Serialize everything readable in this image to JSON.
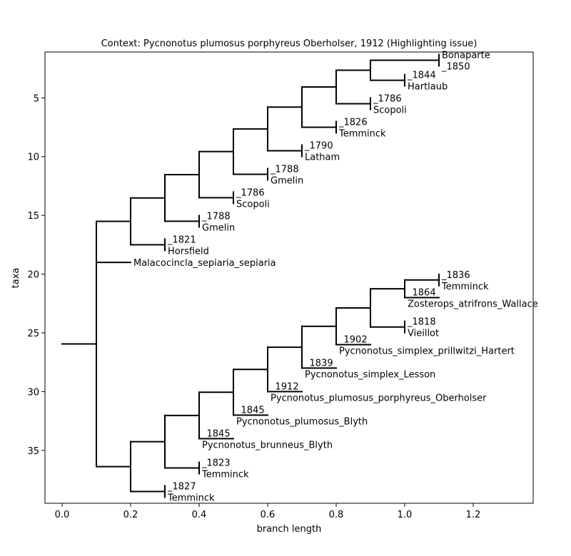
{
  "chart_data": {
    "type": "tree",
    "title": "Context: Pycnonotus plumosus porphyreus Oberholser, 1912 (Highlighting issue)",
    "xlabel": "branch length",
    "ylabel": "taxa",
    "xlim": [
      -0.05,
      1.375
    ],
    "ylim": [
      39.5,
      1.1
    ],
    "x_ticks": [
      0.0,
      0.2,
      0.4,
      0.6,
      0.8,
      1.0,
      1.2
    ],
    "x_tick_labels": [
      "0.0",
      "0.2",
      "0.4",
      "0.6",
      "0.8",
      "1.0",
      "1.2"
    ],
    "y_ticks": [
      5,
      10,
      15,
      20,
      25,
      30,
      35
    ],
    "y_tick_labels": [
      "5",
      "10",
      "15",
      "20",
      "25",
      "30",
      "35"
    ],
    "grid": false,
    "tree": {
      "x": 0.1,
      "root_stub_x": 0.0,
      "children": [
        {
          "x": 0.2,
          "children": [
            {
              "x": 0.3,
              "children": [
                {
                  "x": 0.4,
                  "children": [
                    {
                      "x": 0.5,
                      "children": [
                        {
                          "x": 0.6,
                          "children": [
                            {
                              "x": 0.7,
                              "children": [
                                {
                                  "x": 0.8,
                                  "children": [
                                    {
                                      "x": 0.9,
                                      "children": [
                                        {
                                          "x": 1.1,
                                          "y": 1.8,
                                          "label": " Bonaparte\n_1850",
                                          "tick": true
                                        },
                                        {
                                          "x": 1.0,
                                          "y": 3.5,
                                          "label": "_1844\nHartlaub",
                                          "tick": true
                                        }
                                      ]
                                    },
                                    {
                                      "x": 0.9,
                                      "y": 5.5,
                                      "label": "_1786\nScopoli",
                                      "tick": true
                                    }
                                  ]
                                },
                                {
                                  "x": 0.8,
                                  "y": 7.5,
                                  "label": "_1826\nTemminck",
                                  "tick": true
                                }
                              ]
                            },
                            {
                              "x": 0.7,
                              "y": 9.5,
                              "label": "_1790\nLatham",
                              "tick": true
                            }
                          ]
                        },
                        {
                          "x": 0.6,
                          "y": 11.5,
                          "label": "_1788\nGmelin",
                          "tick": true
                        }
                      ]
                    },
                    {
                      "x": 0.5,
                      "y": 13.5,
                      "label": "_1786\nScopoli",
                      "tick": true
                    }
                  ]
                },
                {
                  "x": 0.4,
                  "y": 15.5,
                  "label": "_1788\nGmelin",
                  "tick": true
                }
              ]
            },
            {
              "x": 0.3,
              "y": 17.5,
              "label": "_1821\nHorsfield",
              "tick": true
            }
          ]
        },
        {
          "x": 0.2,
          "y": 19.0,
          "label": "Malacocincla_sepiaria_sepiaria",
          "tick": false
        },
        {
          "x": 0.2,
          "children": [
            {
              "x": 0.3,
              "children": [
                {
                  "x": 0.4,
                  "children": [
                    {
                      "x": 0.5,
                      "children": [
                        {
                          "x": 0.6,
                          "children": [
                            {
                              "x": 0.7,
                              "children": [
                                {
                                  "x": 0.8,
                                  "children": [
                                    {
                                      "x": 0.9,
                                      "children": [
                                        {
                                          "x": 1.0,
                                          "children": [
                                            {
                                              "x": 1.1,
                                              "y": 20.5,
                                              "label": "_1836\nTemminck",
                                              "tick": true
                                            },
                                            {
                                              "x": 1.1,
                                              "y": 22.0,
                                              "label": "_1864\nZosterops_atrifrons_Wallace",
                                              "tick": false,
                                              "label_x": 1.0
                                            }
                                          ]
                                        },
                                        {
                                          "x": 1.0,
                                          "y": 24.5,
                                          "label": "_1818\nVieillot",
                                          "tick": true
                                        }
                                      ]
                                    },
                                    {
                                      "x": 0.9,
                                      "y": 26.0,
                                      "label": "_1902\nPycnonotus_simplex_prillwitzi_Hartert",
                                      "tick": false,
                                      "label_x": 0.8
                                    }
                                  ]
                                },
                                {
                                  "x": 0.8,
                                  "y": 28.0,
                                  "label": "_1839\nPycnonotus_simplex_Lesson",
                                  "tick": false,
                                  "label_x": 0.7
                                }
                              ]
                            },
                            {
                              "x": 0.7,
                              "y": 30.0,
                              "label": "_1912\nPycnonotus_plumosus_porphyreus_Oberholser",
                              "tick": false,
                              "label_x": 0.6
                            }
                          ]
                        },
                        {
                          "x": 0.6,
                          "y": 32.0,
                          "label": "_1845\nPycnonotus_plumosus_Blyth",
                          "tick": false,
                          "label_x": 0.5
                        }
                      ]
                    },
                    {
                      "x": 0.5,
                      "y": 34.0,
                      "label": "_1845\nPycnonotus_brunneus_Blyth",
                      "tick": false,
                      "label_x": 0.4
                    }
                  ]
                },
                {
                  "x": 0.4,
                  "y": 36.5,
                  "label": "_1823\nTemminck",
                  "tick": true
                }
              ]
            },
            {
              "x": 0.3,
              "y": 38.5,
              "label": "_1827\nTemminck",
              "tick": true
            }
          ]
        }
      ]
    }
  }
}
